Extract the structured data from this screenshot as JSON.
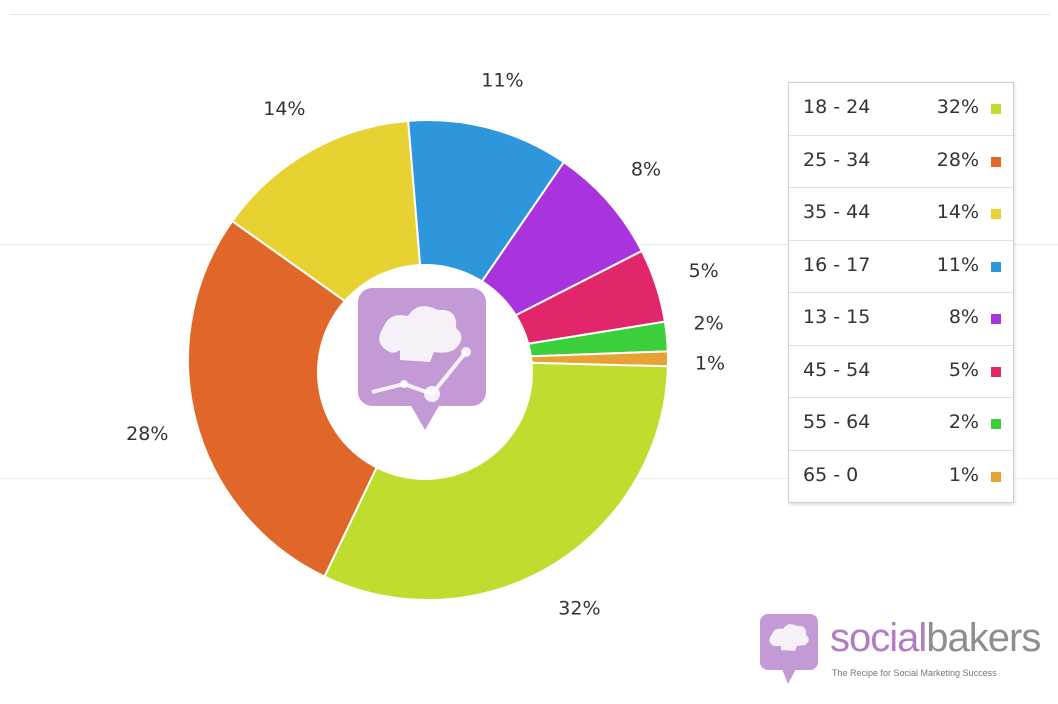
{
  "chart_data": {
    "type": "pie",
    "variant": "donut",
    "categories": [
      "18 - 24",
      "25 - 34",
      "35 - 44",
      "16 - 17",
      "13 - 15",
      "45 - 54",
      "55 - 64",
      "65 - 0"
    ],
    "values": [
      32,
      28,
      14,
      11,
      8,
      5,
      2,
      1
    ],
    "labels": [
      "32%",
      "28%",
      "14%",
      "11%",
      "8%",
      "5%",
      "2%",
      "1%"
    ],
    "colors": [
      "#bfdd2e",
      "#e0662a",
      "#e8d231",
      "#2e97dc",
      "#a934dd",
      "#e2266c",
      "#3ccf3c",
      "#e8a233"
    ],
    "legend_position": "right",
    "title": "",
    "center_icon": "chef-hat-chart-logo-icon"
  },
  "brand": {
    "name_part1": "social",
    "name_part2": "bakers",
    "tagline": "The Recipe for Social Marketing Success",
    "logo_icon": "chef-hat-logo-icon",
    "logo_color": "#c49ad6"
  }
}
